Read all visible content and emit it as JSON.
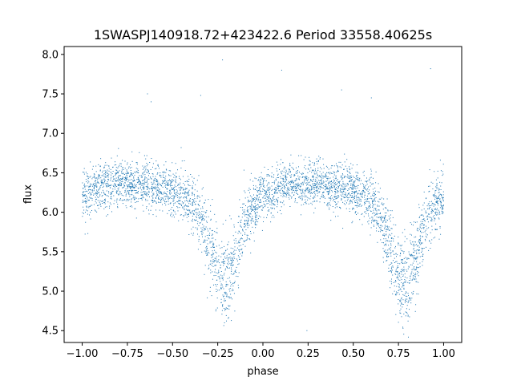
{
  "chart_data": {
    "type": "scatter",
    "title": "1SWASPJ140918.72+423422.6 Period 33558.40625s",
    "xlabel": "phase",
    "ylabel": "flux",
    "xlim": [
      -1.1,
      1.1
    ],
    "ylim": [
      4.35,
      8.1
    ],
    "x_ticks": [
      -1.0,
      -0.75,
      -0.5,
      -0.25,
      0.0,
      0.25,
      0.5,
      0.75,
      1.0
    ],
    "x_tick_labels": [
      "−1.00",
      "−0.75",
      "−0.50",
      "−0.25",
      "0.00",
      "0.25",
      "0.50",
      "0.75",
      "1.00"
    ],
    "y_ticks": [
      4.5,
      5.0,
      5.5,
      6.0,
      6.5,
      7.0,
      7.5,
      8.0
    ],
    "y_tick_labels": [
      "4.5",
      "5.0",
      "5.5",
      "6.0",
      "6.5",
      "7.0",
      "7.5",
      "8.0"
    ],
    "grid": false,
    "legend": "none",
    "marker_color": "#1f77b4",
    "series": [
      {
        "profile_phase": [
          0.0,
          0.05,
          0.1,
          0.15,
          0.2,
          0.25,
          0.3,
          0.35,
          0.4,
          0.45,
          0.5,
          0.55,
          0.6,
          0.65,
          0.7,
          0.75,
          0.8,
          0.85,
          0.9,
          0.95,
          1.0
        ],
        "profile_flux": [
          6.2,
          6.27,
          6.32,
          6.35,
          6.36,
          6.36,
          6.35,
          6.34,
          6.32,
          6.3,
          6.27,
          6.22,
          6.12,
          5.95,
          5.6,
          5.2,
          5.12,
          5.4,
          5.85,
          6.05,
          6.2
        ],
        "scatter_sigma": 0.15,
        "outlier_fluxes": [
          7.82,
          7.5,
          7.55,
          7.48,
          7.45,
          7.4,
          7.93,
          7.8,
          4.5
        ]
      }
    ]
  }
}
